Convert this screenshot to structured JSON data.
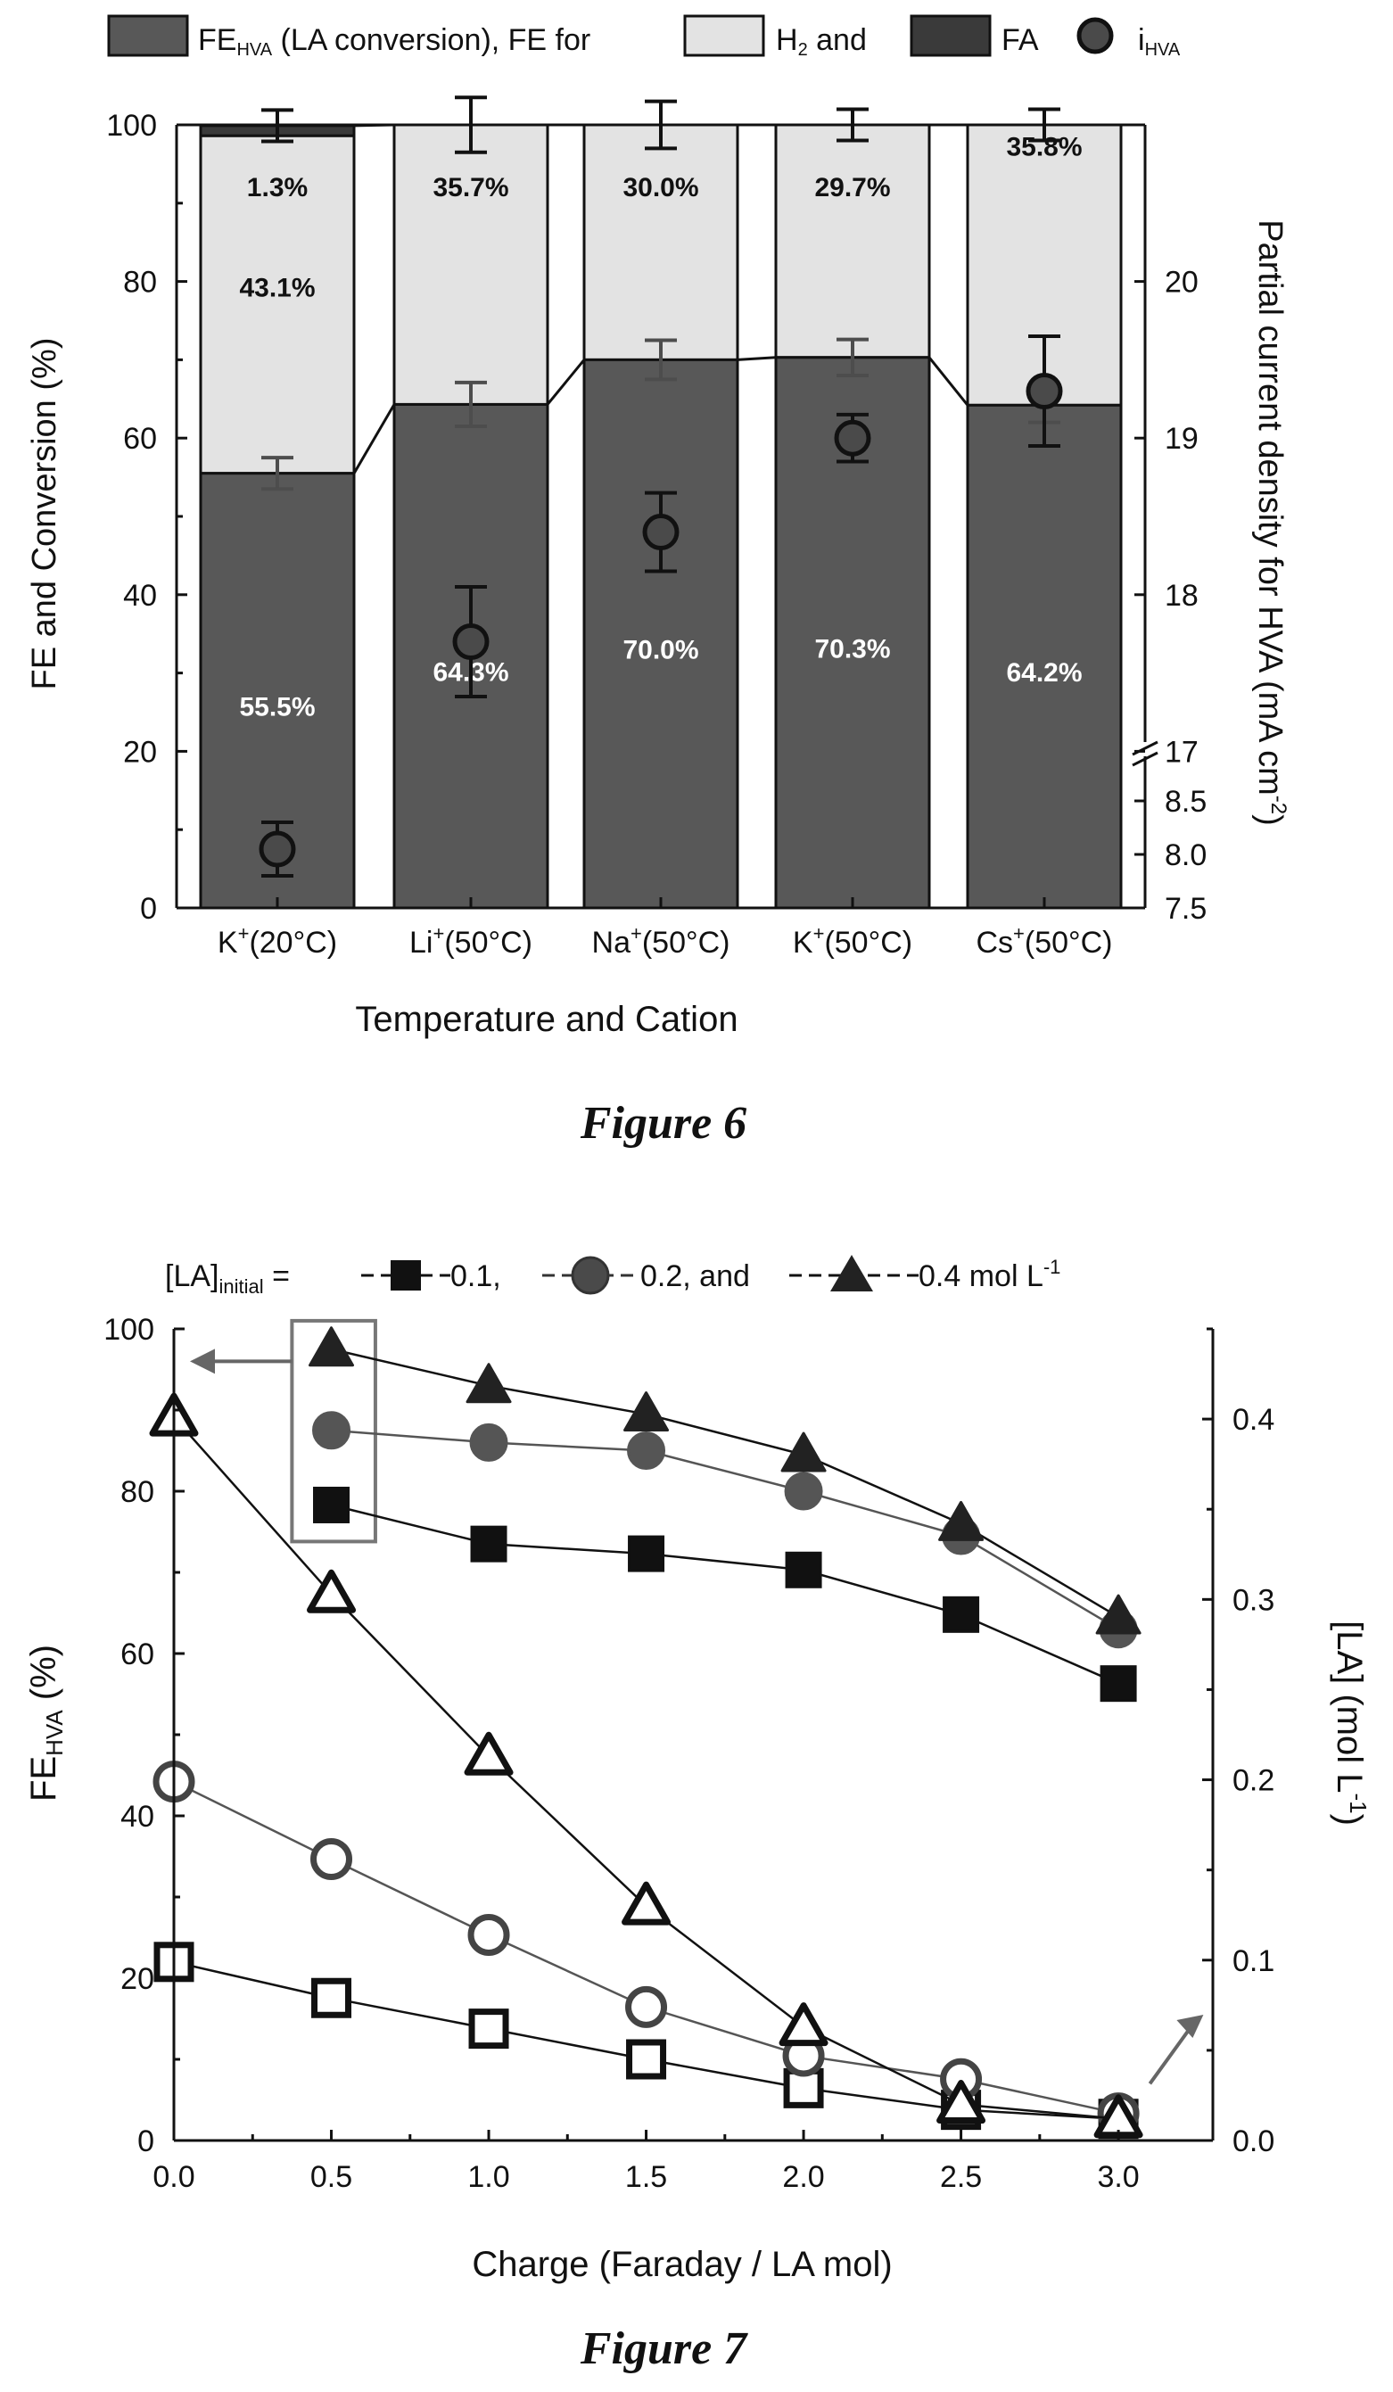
{
  "figure6": {
    "caption": "Figure 6",
    "colors": {
      "fe": "#585858",
      "h2": "#e3e3e3",
      "fa": "#3a3a3a",
      "marker": "#4a4a4a"
    },
    "legend": {
      "fe_main": "FE",
      "fe_sub": "HVA",
      "fe_rest": " (LA conversion), FE for",
      "h2_main": "H",
      "h2_sub": "2",
      "h2_rest": "  and",
      "fa": "FA",
      "i_main": "i",
      "i_sub": "HVA"
    },
    "chart_data": {
      "type": "bar",
      "categories": [
        "K+(20°C)",
        "Li+(50°C)",
        "Na+(50°C)",
        "K+(50°C)",
        "Cs+(50°C)"
      ],
      "category_labels": [
        {
          "ion": "K",
          "rest": "(20°C)"
        },
        {
          "ion": "Li",
          "rest": "(50°C)"
        },
        {
          "ion": "Na",
          "rest": "(50°C)"
        },
        {
          "ion": "K",
          "rest": "(50°C)"
        },
        {
          "ion": "Cs",
          "rest": "(50°C)"
        }
      ],
      "stacked": true,
      "series": [
        {
          "name": "FE HVA (LA conversion)",
          "values": [
            55.5,
            64.3,
            70.0,
            70.3,
            64.2
          ],
          "labels": [
            "55.5%",
            "64.3%",
            "70.0%",
            "70.3%",
            "64.2%"
          ]
        },
        {
          "name": "H2",
          "values": [
            43.1,
            35.7,
            30.0,
            29.7,
            35.8
          ],
          "labels": [
            "43.1%",
            "35.7%",
            "30.0%",
            "29.7%",
            "35.8%"
          ]
        },
        {
          "name": "FA",
          "values": [
            1.3,
            0,
            0,
            0,
            0
          ],
          "labels": [
            "1.3%",
            "",
            "",
            "",
            ""
          ]
        }
      ],
      "fe_error": [
        2.0,
        2.8,
        2.5,
        2.3,
        2.2
      ],
      "total_error": [
        2.0,
        3.5,
        3.0,
        2.0,
        2.0
      ],
      "i_hva": {
        "name": "i HVA",
        "values": [
          8.05,
          17.7,
          18.4,
          19.0,
          19.3
        ],
        "errors": [
          0.25,
          0.35,
          0.25,
          0.15,
          0.35
        ]
      },
      "xlabel": "Temperature and Cation",
      "ylabel": "FE and Conversion (%)",
      "ylim": [
        0,
        100
      ],
      "yticks": [
        0,
        20,
        40,
        60,
        80,
        100
      ],
      "y2label": "Partial current density for HVA (mA cm",
      "y2label_sup": "-2",
      "y2label_end": ")",
      "y2_upper_ticks": [
        "17",
        "18",
        "19",
        "20"
      ],
      "y2_lower_ticks": [
        "7.5",
        "8.0",
        "8.5"
      ],
      "y2_upper_range": [
        16.7,
        20
      ],
      "y2_lower_range": [
        7.5,
        8.9
      ]
    }
  },
  "figure7": {
    "caption": "Figure 7",
    "legend": {
      "prefix": "[LA]",
      "prefix_sub": "initial",
      "eq": " =",
      "items": [
        " 0.1,",
        " 0.2, and",
        "  0.4 mol L"
      ],
      "last_sup": "-1"
    },
    "chart_data": {
      "type": "scatter",
      "x": [
        0.0,
        0.5,
        1.0,
        1.5,
        2.0,
        2.5,
        3.0
      ],
      "series": [
        {
          "name": "0.1",
          "axis": "left",
          "marker": "square",
          "filled": true,
          "x": [
            0.5,
            1.0,
            1.5,
            2.0,
            2.5,
            3.0
          ],
          "values": [
            78.3,
            73.5,
            72.3,
            70.3,
            64.8,
            56.3
          ]
        },
        {
          "name": "0.2",
          "axis": "left",
          "marker": "circle",
          "filled": true,
          "x": [
            0.5,
            1.0,
            1.5,
            2.0,
            2.5,
            3.0
          ],
          "values": [
            87.5,
            86.0,
            85.0,
            80.0,
            74.5,
            63.0
          ]
        },
        {
          "name": "0.4",
          "axis": "left",
          "marker": "triangle",
          "filled": true,
          "x": [
            0.5,
            1.0,
            1.5,
            2.0,
            2.5,
            3.0
          ],
          "values": [
            97.5,
            93.0,
            89.5,
            84.5,
            76.0,
            64.5
          ]
        },
        {
          "name": "0.1",
          "axis": "right",
          "marker": "square",
          "filled": false,
          "x": [
            0.0,
            0.5,
            1.0,
            1.5,
            2.0,
            2.5,
            3.0
          ],
          "values": [
            0.099,
            0.079,
            0.062,
            0.045,
            0.029,
            0.017,
            0.012
          ]
        },
        {
          "name": "0.2",
          "axis": "right",
          "marker": "circle",
          "filled": false,
          "x": [
            0.0,
            0.5,
            1.0,
            1.5,
            2.0,
            2.5,
            3.0
          ],
          "values": [
            0.199,
            0.156,
            0.114,
            0.074,
            0.047,
            0.034,
            0.015
          ]
        },
        {
          "name": "0.4",
          "axis": "right",
          "marker": "triangle",
          "filled": false,
          "x": [
            0.0,
            0.5,
            1.0,
            1.5,
            2.0,
            2.5,
            3.0
          ],
          "values": [
            0.401,
            0.303,
            0.213,
            0.13,
            0.063,
            0.02,
            0.012
          ]
        }
      ],
      "xlabel": "Charge (Faraday / LA mol)",
      "xlim": [
        0,
        3.3
      ],
      "xticks": [
        "0.0",
        "0.5",
        "1.0",
        "1.5",
        "2.0",
        "2.5",
        "3.0"
      ],
      "ylabel_main": "FE",
      "ylabel_sub": "HVA",
      "ylabel_rest": " (%)",
      "ylim": [
        0,
        100
      ],
      "yticks": [
        0,
        20,
        40,
        60,
        80,
        100
      ],
      "y2label": "[LA] (mol L",
      "y2label_sup": "-1",
      "y2label_end": ")",
      "y2lim": [
        0,
        0.45
      ],
      "y2ticks": [
        "0.0",
        "0.1",
        "0.2",
        "0.3",
        "0.4"
      ]
    }
  }
}
